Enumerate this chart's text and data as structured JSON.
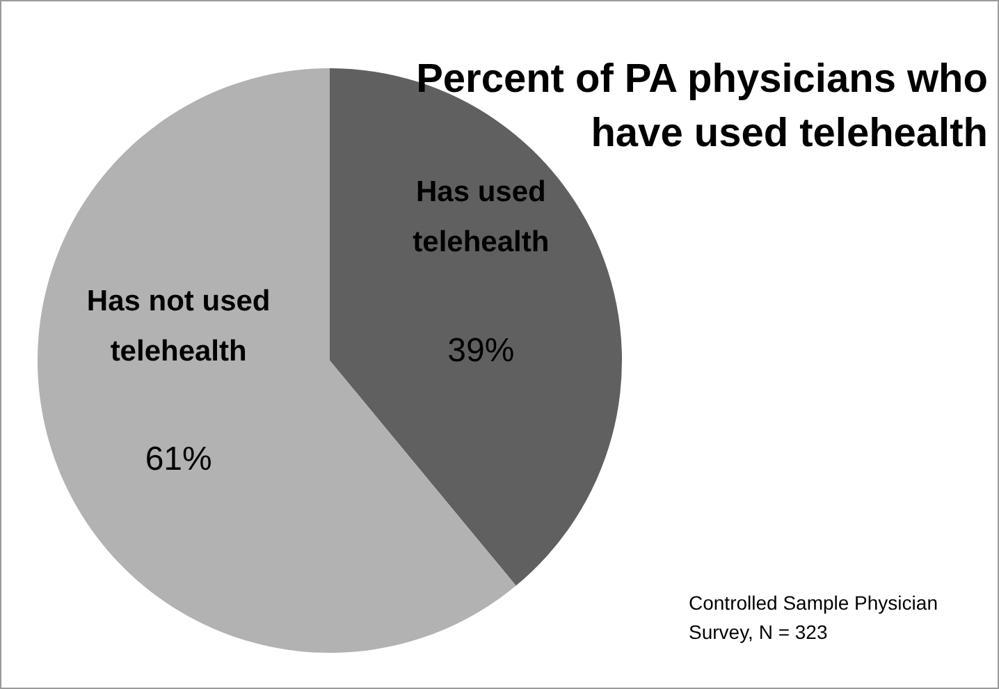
{
  "chart_data": {
    "type": "pie",
    "title": "Percent of PA physicians who have used telehealth",
    "categories": [
      "Has used telehealth",
      "Has not used telehealth"
    ],
    "values": [
      39,
      61
    ],
    "colors": [
      "#606060",
      "#b2b2b2"
    ],
    "value_labels": [
      "39%",
      "61%"
    ],
    "legend": false,
    "annotations": [
      "Controlled Sample Physician Survey, N = 323"
    ]
  }
}
